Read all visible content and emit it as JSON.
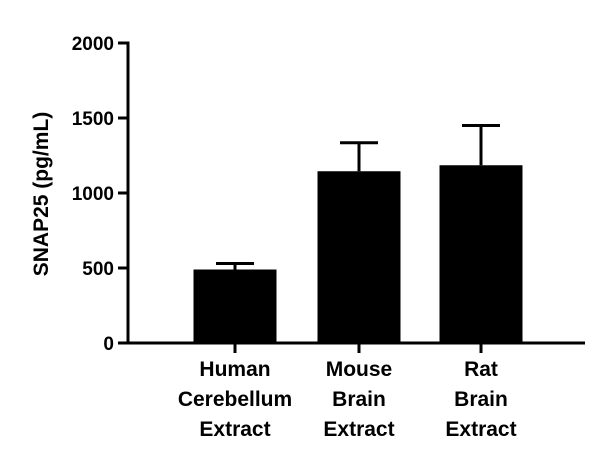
{
  "chart_data": {
    "type": "bar",
    "title": "",
    "xlabel": "",
    "ylabel": "SNAP25 (pg/mL)",
    "ylim": [
      0,
      2000
    ],
    "yticks": [
      0,
      500,
      1000,
      1500,
      2000
    ],
    "categories": [
      [
        "Human",
        "Cerebellum",
        "Extract"
      ],
      [
        "Mouse",
        "Brain",
        "Extract"
      ],
      [
        "Rat",
        "Brain",
        "Extract"
      ]
    ],
    "values": [
      490,
      1145,
      1185
    ],
    "error_upper": [
      530,
      1335,
      1450
    ],
    "bar_color": "#000000",
    "grid": false
  }
}
